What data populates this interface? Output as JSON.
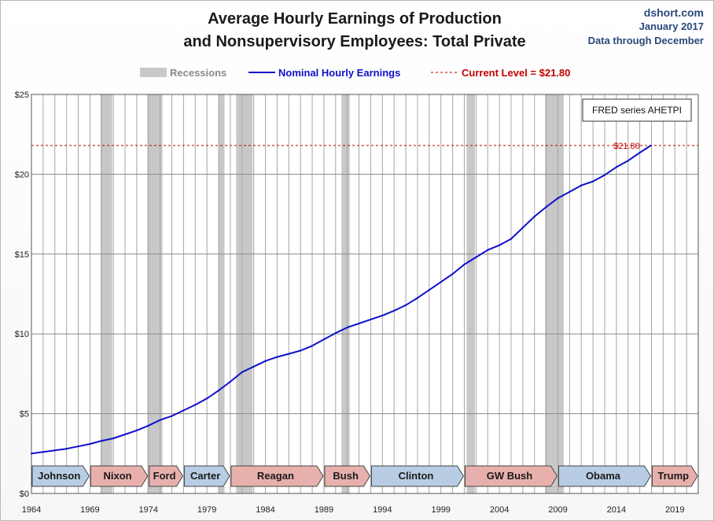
{
  "header": {
    "title_line1": "Average Hourly Earnings of Production",
    "title_line2": "and Nonsupervisory Employees: Total Private",
    "source_site": "dshort.com",
    "source_date": "January 2017",
    "source_note": "Data through December"
  },
  "chart_data": {
    "type": "line",
    "title": "Average Hourly Earnings of Production and Nonsupervisory Employees: Total Private",
    "xlim": [
      1964,
      2021
    ],
    "ylim": [
      0,
      25
    ],
    "y_ticks": [
      0,
      5,
      10,
      15,
      20,
      25
    ],
    "y_tick_labels": [
      "$0",
      "$5",
      "$10",
      "$15",
      "$20",
      "$25"
    ],
    "x_tick_labels": [
      "1964",
      "1969",
      "1974",
      "1979",
      "1984",
      "1989",
      "1994",
      "1999",
      "2004",
      "2009",
      "2014",
      "2019"
    ],
    "grid": true,
    "legend": {
      "placement": "top",
      "entries": [
        "Recessions",
        "Nominal Hourly Earnings",
        "Current Level = $21.80"
      ]
    },
    "series": [
      {
        "name": "Nominal Hourly Earnings",
        "color": "#1010cc",
        "x": [
          1964,
          1965,
          1966,
          1967,
          1968,
          1969,
          1970,
          1971,
          1972,
          1973,
          1974,
          1975,
          1976,
          1977,
          1978,
          1979,
          1980,
          1981,
          1982,
          1983,
          1984,
          1985,
          1986,
          1987,
          1988,
          1989,
          1990,
          1991,
          1992,
          1993,
          1994,
          1995,
          1996,
          1997,
          1998,
          1999,
          2000,
          2001,
          2002,
          2003,
          2004,
          2005,
          2006,
          2007,
          2008,
          2009,
          2010,
          2011,
          2012,
          2013,
          2014,
          2015,
          2016,
          2016.95
        ],
        "y": [
          2.5,
          2.6,
          2.7,
          2.8,
          2.95,
          3.1,
          3.3,
          3.45,
          3.7,
          3.95,
          4.25,
          4.6,
          4.85,
          5.2,
          5.55,
          5.95,
          6.45,
          7.0,
          7.6,
          7.95,
          8.3,
          8.55,
          8.75,
          8.95,
          9.25,
          9.65,
          10.05,
          10.4,
          10.65,
          10.9,
          11.15,
          11.45,
          11.8,
          12.25,
          12.75,
          13.25,
          13.75,
          14.35,
          14.8,
          15.25,
          15.55,
          15.95,
          16.65,
          17.35,
          17.95,
          18.5,
          18.9,
          19.3,
          19.55,
          19.95,
          20.45,
          20.85,
          21.35,
          21.8
        ]
      }
    ],
    "current_level": {
      "value": 21.8,
      "label": "$21.80",
      "color": "#c00000"
    },
    "recessions": [
      [
        1969.9,
        1970.9
      ],
      [
        1973.9,
        1975.2
      ],
      [
        1980.0,
        1980.5
      ],
      [
        1981.5,
        1982.9
      ],
      [
        1990.5,
        1991.2
      ],
      [
        2001.2,
        2001.9
      ],
      [
        2007.9,
        2009.5
      ]
    ],
    "recession_color": "#c8c8c8",
    "annotation": "FRED series AHETPI",
    "presidents": [
      {
        "name": "Johnson",
        "start": 1964,
        "end": 1969,
        "party": "D"
      },
      {
        "name": "Nixon",
        "start": 1969,
        "end": 1974,
        "party": "R"
      },
      {
        "name": "Ford",
        "start": 1974,
        "end": 1977,
        "party": "R"
      },
      {
        "name": "Carter",
        "start": 1977,
        "end": 1981,
        "party": "D"
      },
      {
        "name": "Reagan",
        "start": 1981,
        "end": 1989,
        "party": "R"
      },
      {
        "name": "Bush",
        "start": 1989,
        "end": 1993,
        "party": "R"
      },
      {
        "name": "Clinton",
        "start": 1993,
        "end": 2001,
        "party": "D"
      },
      {
        "name": "GW Bush",
        "start": 2001,
        "end": 2009,
        "party": "R"
      },
      {
        "name": "Obama",
        "start": 2009,
        "end": 2017,
        "party": "D"
      },
      {
        "name": "Trump",
        "start": 2017,
        "end": 2021,
        "party": "R"
      }
    ],
    "party_colors": {
      "D": "#b8cde4",
      "R": "#e8b0ac"
    }
  }
}
